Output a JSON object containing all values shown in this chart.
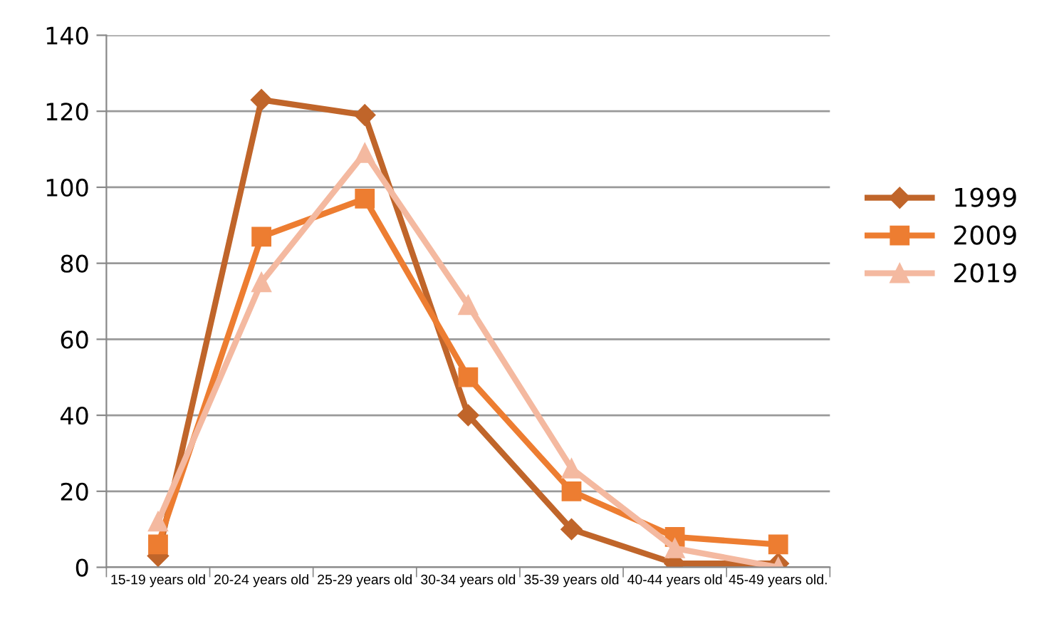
{
  "chart_data": {
    "type": "line",
    "categories": [
      "15-19 years old",
      "20-24 years old",
      "25-29 years old",
      "30-34 years old",
      "35-39 years old",
      "40-44 years old",
      "45-49 years old."
    ],
    "series": [
      {
        "name": "1999",
        "color": "#c0652a",
        "marker": "diamond",
        "values": [
          3,
          123,
          119,
          40,
          10,
          1,
          1
        ]
      },
      {
        "name": "2009",
        "color": "#ed7d31",
        "marker": "square",
        "values": [
          6,
          87,
          97,
          50,
          20,
          8,
          6
        ]
      },
      {
        "name": "2019",
        "color": "#f4b9a0",
        "marker": "triangle",
        "values": [
          12,
          75,
          109,
          69,
          26,
          5,
          0
        ]
      }
    ],
    "ylim": [
      0,
      140
    ],
    "yticks": [
      0,
      20,
      40,
      60,
      80,
      100,
      120,
      140
    ],
    "grid": "y",
    "legend": "right",
    "line_style": "solid"
  }
}
